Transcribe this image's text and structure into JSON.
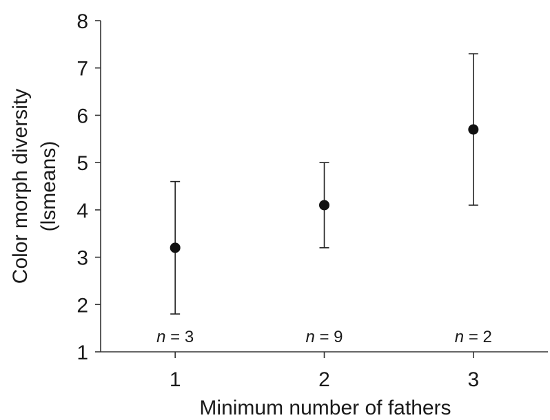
{
  "chart_data": {
    "type": "scatter",
    "title": "",
    "xlabel": "Minimum number of fathers",
    "ylabel_lines": [
      "Color morph diversity",
      "(lsmeans)"
    ],
    "xlim": [
      0.5,
      3.5
    ],
    "ylim": [
      1,
      8
    ],
    "x_ticks": [
      "1",
      "2",
      "3"
    ],
    "y_ticks": [
      "1",
      "2",
      "3",
      "4",
      "5",
      "6",
      "7",
      "8"
    ],
    "points": [
      {
        "x": 1,
        "y": 3.2,
        "lower": 1.8,
        "upper": 4.6,
        "n_var": "n",
        "n_text": " = 3"
      },
      {
        "x": 2,
        "y": 4.1,
        "lower": 3.2,
        "upper": 5.0,
        "n_var": "n",
        "n_text": " = 9"
      },
      {
        "x": 3,
        "y": 5.7,
        "lower": 4.1,
        "upper": 7.3,
        "n_var": "n",
        "n_text": " = 2"
      }
    ],
    "grid": false,
    "legend": "none",
    "colors": {
      "marker": "#111111",
      "axis": "#333333",
      "text": "#1a1a1a"
    }
  }
}
